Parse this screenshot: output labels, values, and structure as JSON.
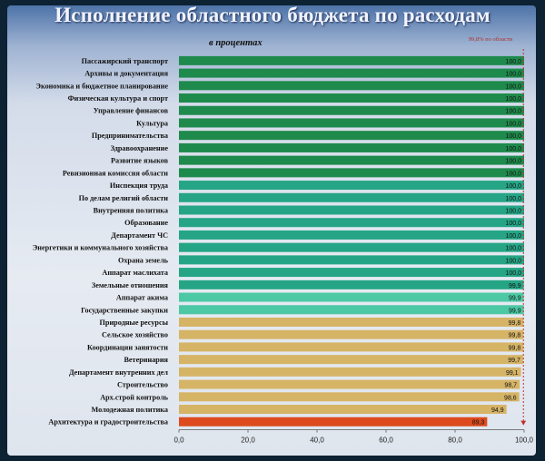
{
  "title": "Исполнение областного бюджета по расходам",
  "subtitle": "в процентах",
  "avg_line_label": "99,8% по области",
  "colors": {
    "dark_green": "#1e8a4c",
    "teal": "#25a585",
    "light_teal": "#4cc8a4",
    "tan": "#d6b466",
    "red": "#dc4a1e",
    "marker": "#c0312a"
  },
  "chart_data": {
    "type": "bar",
    "orientation": "horizontal",
    "categories": [
      "Пассажирский транспорт",
      "Архивы и документация",
      "Экономика и бюджетное планирование",
      "Физическая культура и спорт",
      "Управление финансов",
      "Культура",
      "Предпринимательства",
      "Здравоохранение",
      "Развитие языков",
      "Ревизионная комиссия области",
      "Инспекция труда",
      "По делам религий области",
      "Внутренняя политика",
      "Образование",
      "Департамент ЧС",
      "Энергетики и коммунального хозяйства",
      "Охрана земель",
      "Аппарат маслихата",
      "Земельные отношения",
      "Аппарат акима",
      "Государственные закупки",
      "Природные ресурсы",
      "Сельское хозяйство",
      "Координации занятости",
      "Ветеринария",
      "Департамент внутренних дел",
      "Строительство",
      "Арх.строй контроль",
      "Молодежная политика",
      "Архитектура и градостроительства"
    ],
    "values": [
      100.0,
      100.0,
      100.0,
      100.0,
      100.0,
      100.0,
      100.0,
      100.0,
      100.0,
      100.0,
      100.0,
      100.0,
      100.0,
      100.0,
      100.0,
      100.0,
      100.0,
      100.0,
      99.9,
      99.9,
      99.9,
      99.8,
      99.8,
      99.8,
      99.7,
      99.1,
      98.7,
      98.6,
      94.9,
      89.3
    ],
    "value_labels": [
      "100,0",
      "100,0",
      "100,0",
      "100,0",
      "100,0",
      "100,0",
      "100,0",
      "100,0",
      "100,0",
      "100,0",
      "100,0",
      "100,0",
      "100,0",
      "100,0",
      "100,0",
      "100,0",
      "100,0",
      "100,0",
      "99,9",
      "99,9",
      "99,9",
      "99,8",
      "99,8",
      "99,8",
      "99,7",
      "99,1",
      "98,7",
      "98,6",
      "94,9",
      "89,3"
    ],
    "bar_colors": [
      "dark_green",
      "dark_green",
      "dark_green",
      "dark_green",
      "dark_green",
      "dark_green",
      "dark_green",
      "dark_green",
      "dark_green",
      "dark_green",
      "teal",
      "teal",
      "teal",
      "teal",
      "teal",
      "teal",
      "teal",
      "teal",
      "teal",
      "light_teal",
      "light_teal",
      "tan",
      "tan",
      "tan",
      "tan",
      "tan",
      "tan",
      "tan",
      "tan",
      "red"
    ],
    "xlim": [
      0,
      100
    ],
    "xticks": [
      "0,0",
      "20,0",
      "40,0",
      "60,0",
      "80,0",
      "100,0"
    ],
    "average_line": 99.8,
    "grid": false
  }
}
